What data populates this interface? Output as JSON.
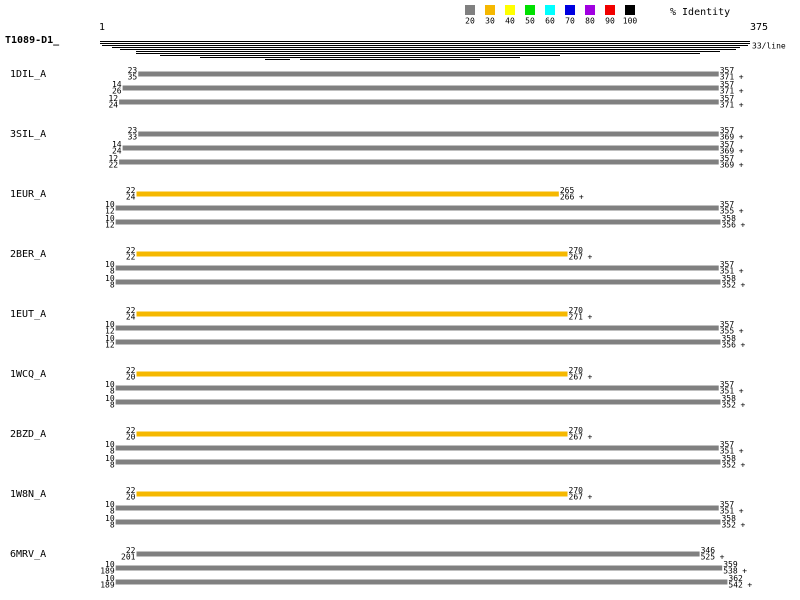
{
  "legend": {
    "title": "% Identity",
    "items": [
      {
        "label": "20",
        "color": "#808080"
      },
      {
        "label": "30",
        "color": "#f5b800"
      },
      {
        "label": "40",
        "color": "#ffff00"
      },
      {
        "label": "50",
        "color": "#00e000"
      },
      {
        "label": "60",
        "color": "#00ffff"
      },
      {
        "label": "70",
        "color": "#0000e0"
      },
      {
        "label": "80",
        "color": "#a000e0"
      },
      {
        "label": "90",
        "color": "#f00000"
      },
      {
        "label": "100",
        "color": "#000000"
      }
    ]
  },
  "query": {
    "name": "T1089-D1_",
    "start": 1,
    "end": 375,
    "coverage_label": "33/line"
  },
  "hits": [
    {
      "name": "1DIL_A",
      "rows": [
        {
          "qstart": 23,
          "sstart": 35,
          "qend": 357,
          "send": 371,
          "strand": "+",
          "color": "#808080"
        },
        {
          "qstart": 14,
          "sstart": 26,
          "qend": 357,
          "send": 371,
          "strand": "+",
          "color": "#808080"
        },
        {
          "qstart": 12,
          "sstart": 24,
          "qend": 357,
          "send": 371,
          "strand": "+",
          "color": "#808080"
        }
      ]
    },
    {
      "name": "3SIL_A",
      "rows": [
        {
          "qstart": 23,
          "sstart": 33,
          "qend": 357,
          "send": 369,
          "strand": "+",
          "color": "#808080"
        },
        {
          "qstart": 14,
          "sstart": 24,
          "qend": 357,
          "send": 369,
          "strand": "+",
          "color": "#808080"
        },
        {
          "qstart": 12,
          "sstart": 22,
          "qend": 357,
          "send": 369,
          "strand": "+",
          "color": "#808080"
        }
      ]
    },
    {
      "name": "1EUR_A",
      "rows": [
        {
          "qstart": 22,
          "sstart": 24,
          "qend": 265,
          "send": 266,
          "strand": "+",
          "color": "#f5b800"
        },
        {
          "qstart": 10,
          "sstart": 12,
          "qend": 357,
          "send": 355,
          "strand": "+",
          "color": "#808080"
        },
        {
          "qstart": 10,
          "sstart": 12,
          "qend": 358,
          "send": 356,
          "strand": "+",
          "color": "#808080"
        }
      ]
    },
    {
      "name": "2BER_A",
      "rows": [
        {
          "qstart": 22,
          "sstart": 22,
          "qend": 270,
          "send": 267,
          "strand": "+",
          "color": "#f5b800"
        },
        {
          "qstart": 10,
          "sstart": 8,
          "qend": 357,
          "send": 351,
          "strand": "+",
          "color": "#808080"
        },
        {
          "qstart": 10,
          "sstart": 8,
          "qend": 358,
          "send": 352,
          "strand": "+",
          "color": "#808080"
        }
      ]
    },
    {
      "name": "1EUT_A",
      "rows": [
        {
          "qstart": 22,
          "sstart": 24,
          "qend": 270,
          "send": 271,
          "strand": "+",
          "color": "#f5b800"
        },
        {
          "qstart": 10,
          "sstart": 12,
          "qend": 357,
          "send": 355,
          "strand": "+",
          "color": "#808080"
        },
        {
          "qstart": 10,
          "sstart": 12,
          "qend": 358,
          "send": 356,
          "strand": "+",
          "color": "#808080"
        }
      ]
    },
    {
      "name": "1WCQ_A",
      "rows": [
        {
          "qstart": 22,
          "sstart": 20,
          "qend": 270,
          "send": 267,
          "strand": "+",
          "color": "#f5b800"
        },
        {
          "qstart": 10,
          "sstart": 8,
          "qend": 357,
          "send": 351,
          "strand": "+",
          "color": "#808080"
        },
        {
          "qstart": 10,
          "sstart": 8,
          "qend": 358,
          "send": 352,
          "strand": "+",
          "color": "#808080"
        }
      ]
    },
    {
      "name": "2BZD_A",
      "rows": [
        {
          "qstart": 22,
          "sstart": 20,
          "qend": 270,
          "send": 267,
          "strand": "+",
          "color": "#f5b800"
        },
        {
          "qstart": 10,
          "sstart": 8,
          "qend": 357,
          "send": 351,
          "strand": "+",
          "color": "#808080"
        },
        {
          "qstart": 10,
          "sstart": 8,
          "qend": 358,
          "send": 352,
          "strand": "+",
          "color": "#808080"
        }
      ]
    },
    {
      "name": "1W8N_A",
      "rows": [
        {
          "qstart": 22,
          "sstart": 20,
          "qend": 270,
          "send": 267,
          "strand": "+",
          "color": "#f5b800"
        },
        {
          "qstart": 10,
          "sstart": 8,
          "qend": 357,
          "send": 351,
          "strand": "+",
          "color": "#808080"
        },
        {
          "qstart": 10,
          "sstart": 8,
          "qend": 358,
          "send": 352,
          "strand": "+",
          "color": "#808080"
        }
      ]
    },
    {
      "name": "6MRV_A",
      "rows": [
        {
          "qstart": 22,
          "sstart": 201,
          "qend": 346,
          "send": 525,
          "strand": "+",
          "color": "#808080"
        },
        {
          "qstart": 10,
          "sstart": 189,
          "qend": 359,
          "send": 538,
          "strand": "+",
          "color": "#808080"
        },
        {
          "qstart": 10,
          "sstart": 189,
          "qend": 362,
          "send": 542,
          "strand": "+",
          "color": "#808080"
        }
      ]
    }
  ]
}
